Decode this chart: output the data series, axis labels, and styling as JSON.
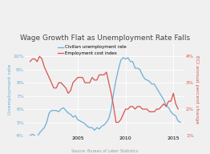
{
  "title": "Wage Growth Flat as Unemployment Rate Falls",
  "legend_labels": [
    "Civilian unemployment rate",
    "Employment cost index"
  ],
  "xlabel_source": "Source: Bureau of Labor Statistics",
  "ylabel_left": "Unemployment rate",
  "ylabel_right": "ECI annual percent change",
  "blue_color": "#6baed6",
  "red_color": "#d9534f",
  "background_color": "#f0f0f0",
  "grid_color": "#ffffff",
  "ylim_left": [
    4,
    11
  ],
  "ylim_right": [
    1,
    4.5
  ],
  "yticks_left": [
    4,
    5,
    6,
    7,
    8,
    9,
    10
  ],
  "yticks_right": [
    1,
    2,
    3,
    4
  ],
  "xlim": [
    1999.5,
    2016.2
  ],
  "xticks": [
    2005,
    2010,
    2015
  ],
  "unemp_x": [
    2000.0,
    2000.25,
    2000.5,
    2000.75,
    2001.0,
    2001.25,
    2001.5,
    2001.75,
    2002.0,
    2002.25,
    2002.5,
    2002.75,
    2003.0,
    2003.25,
    2003.5,
    2003.75,
    2004.0,
    2004.25,
    2004.5,
    2004.75,
    2005.0,
    2005.25,
    2005.5,
    2005.75,
    2006.0,
    2006.25,
    2006.5,
    2006.75,
    2007.0,
    2007.25,
    2007.5,
    2007.75,
    2008.0,
    2008.25,
    2008.5,
    2008.75,
    2009.0,
    2009.25,
    2009.5,
    2009.75,
    2010.0,
    2010.25,
    2010.5,
    2010.75,
    2011.0,
    2011.25,
    2011.5,
    2011.75,
    2012.0,
    2012.25,
    2012.5,
    2012.75,
    2013.0,
    2013.25,
    2013.5,
    2013.75,
    2014.0,
    2014.25,
    2014.5,
    2014.75,
    2015.0,
    2015.25,
    2015.5,
    2015.75
  ],
  "unemp_y": [
    4.0,
    4.1,
    4.0,
    3.9,
    4.2,
    4.4,
    4.6,
    5.0,
    5.7,
    5.9,
    5.9,
    5.9,
    5.8,
    6.0,
    6.1,
    5.9,
    5.7,
    5.6,
    5.4,
    5.5,
    5.2,
    5.1,
    5.0,
    4.9,
    4.7,
    4.6,
    4.6,
    4.4,
    4.6,
    4.5,
    4.7,
    4.8,
    5.0,
    5.3,
    6.0,
    7.2,
    8.2,
    9.0,
    9.7,
    9.9,
    9.8,
    9.9,
    9.6,
    9.6,
    9.1,
    9.1,
    9.0,
    8.6,
    8.3,
    8.2,
    8.1,
    7.9,
    7.9,
    7.6,
    7.3,
    7.0,
    6.7,
    6.3,
    6.1,
    5.8,
    5.6,
    5.5,
    5.1,
    5.0
  ],
  "eci_x": [
    2000.0,
    2000.25,
    2000.5,
    2000.75,
    2001.0,
    2001.25,
    2001.5,
    2001.75,
    2002.0,
    2002.25,
    2002.5,
    2002.75,
    2003.0,
    2003.25,
    2003.5,
    2003.75,
    2004.0,
    2004.25,
    2004.5,
    2004.75,
    2005.0,
    2005.25,
    2005.5,
    2005.75,
    2006.0,
    2006.25,
    2006.5,
    2006.75,
    2007.0,
    2007.25,
    2007.5,
    2007.75,
    2008.0,
    2008.25,
    2008.5,
    2008.75,
    2009.0,
    2009.25,
    2009.5,
    2009.75,
    2010.0,
    2010.25,
    2010.5,
    2010.75,
    2011.0,
    2011.25,
    2011.5,
    2011.75,
    2012.0,
    2012.25,
    2012.5,
    2012.75,
    2013.0,
    2013.25,
    2013.5,
    2013.75,
    2014.0,
    2014.25,
    2014.5,
    2014.75,
    2015.0,
    2015.25,
    2015.5
  ],
  "eci_y": [
    3.8,
    3.9,
    3.9,
    3.8,
    4.0,
    3.9,
    3.6,
    3.4,
    3.2,
    3.0,
    2.8,
    2.8,
    3.0,
    3.0,
    2.9,
    2.8,
    2.6,
    2.7,
    3.0,
    3.1,
    3.2,
    3.2,
    3.2,
    3.0,
    3.0,
    3.0,
    3.2,
    3.1,
    3.1,
    3.3,
    3.3,
    3.3,
    3.4,
    3.0,
    2.6,
    2.1,
    1.5,
    1.5,
    1.6,
    1.8,
    2.0,
    2.0,
    2.1,
    2.1,
    2.0,
    2.1,
    2.1,
    2.0,
    2.0,
    2.0,
    1.9,
    1.9,
    1.9,
    2.0,
    2.0,
    2.1,
    2.2,
    2.1,
    2.3,
    2.3,
    2.6,
    2.2,
    2.0
  ],
  "title_fontsize": 6.5,
  "legend_fontsize": 4.0,
  "tick_fontsize": 4.5,
  "ylabel_fontsize": 4.5,
  "source_fontsize": 3.5
}
